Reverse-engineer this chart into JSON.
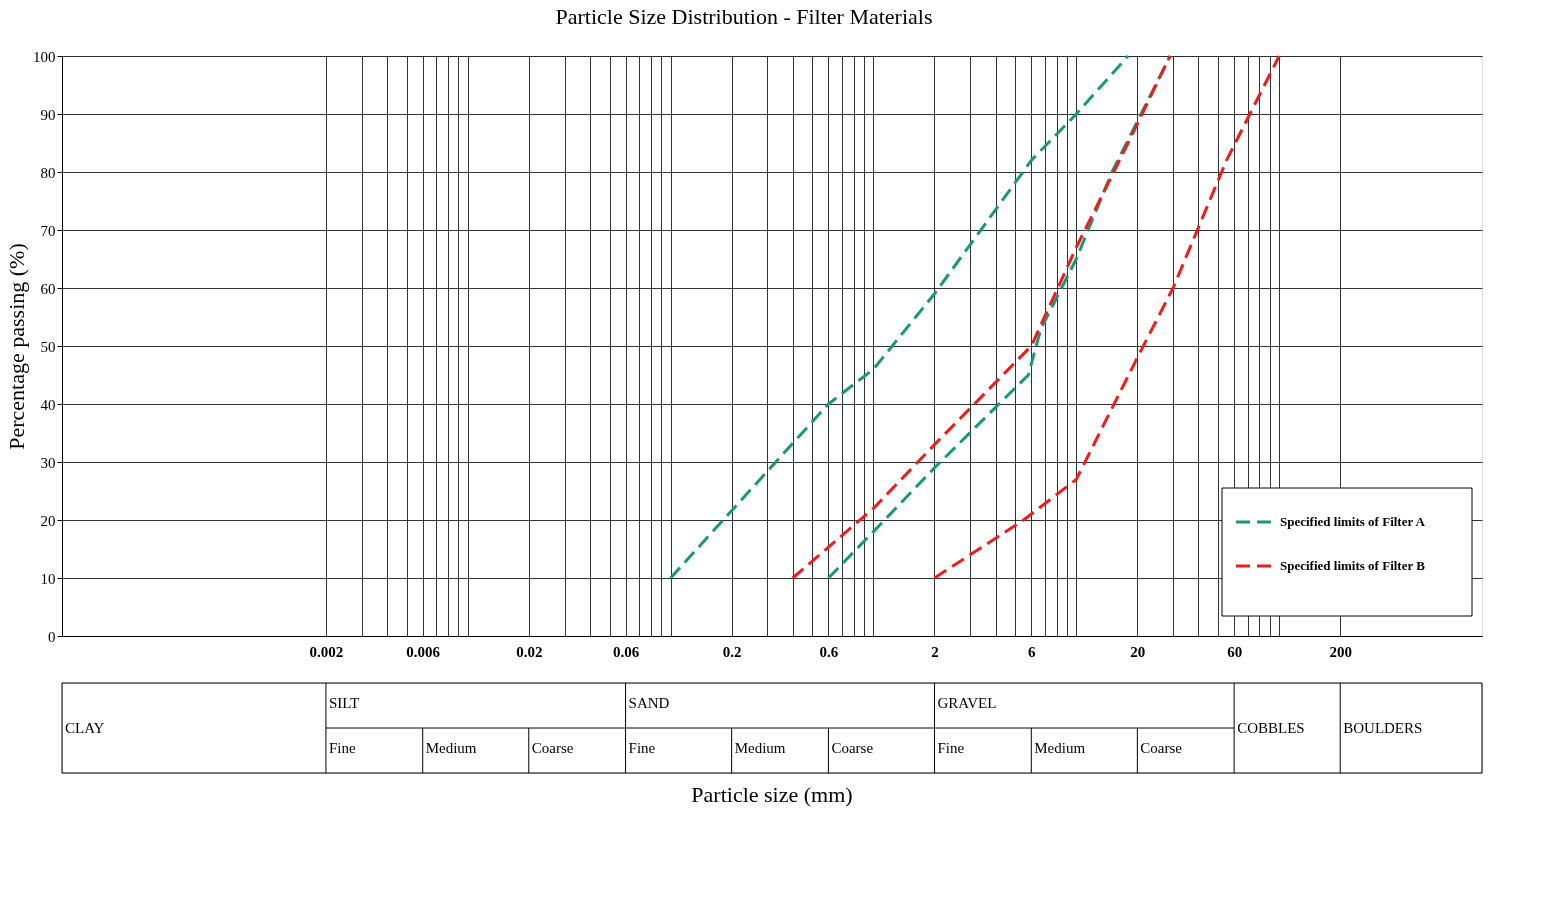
{
  "chart_data": {
    "type": "line",
    "title": "Particle Size Distribution - Filter Materials",
    "ylabel": "Percentage passing (%)",
    "log": "x",
    "xlim": [
      0.0001,
      1000
    ],
    "ylim": [
      0,
      100
    ],
    "xticks": [
      0.002,
      {
        "value": 0.003,
        "label": null
      },
      {
        "value": 0.004,
        "label": null
      },
      {
        "value": 0.005,
        "label": null
      },
      0.006,
      {
        "value": 0.007,
        "label": null
      },
      {
        "value": 0.008,
        "label": null
      },
      {
        "value": 0.009,
        "label": null
      },
      {
        "value": 0.01,
        "label": null
      },
      0.02,
      {
        "value": 0.03,
        "label": null
      },
      {
        "value": 0.04,
        "label": null
      },
      {
        "value": 0.05,
        "label": null
      },
      0.06,
      {
        "value": 0.07,
        "label": null
      },
      {
        "value": 0.08,
        "label": null
      },
      {
        "value": 0.09,
        "label": null
      },
      {
        "value": 0.1,
        "label": null
      },
      0.2,
      {
        "value": 0.3,
        "label": null
      },
      {
        "value": 0.4,
        "label": null
      },
      {
        "value": 0.5,
        "label": null
      },
      0.6,
      {
        "value": 0.7,
        "label": null
      },
      {
        "value": 0.8,
        "label": null
      },
      {
        "value": 0.9,
        "label": null
      },
      {
        "value": 1,
        "label": null
      },
      2,
      {
        "value": 3,
        "label": null
      },
      {
        "value": 4,
        "label": null
      },
      {
        "value": 5,
        "label": null
      },
      6,
      {
        "value": 7,
        "label": null
      },
      {
        "value": 8,
        "label": null
      },
      {
        "value": 9,
        "label": null
      },
      {
        "value": 10,
        "label": null
      },
      20,
      {
        "value": 30,
        "label": null
      },
      {
        "value": 40,
        "label": null
      },
      {
        "value": 50,
        "label": null
      },
      60,
      {
        "value": 70,
        "label": null
      },
      {
        "value": 80,
        "label": null
      },
      {
        "value": 90,
        "label": null
      },
      {
        "value": 100,
        "label": null
      },
      200
    ],
    "yticks": [
      0,
      10,
      20,
      30,
      40,
      50,
      60,
      70,
      80,
      90,
      100
    ],
    "grid": true,
    "legend": "bottom right",
    "line_style": "dashed",
    "marker": "none",
    "series": [
      {
        "name": "Specified limits of Filter A",
        "color": "#1a9a6c",
        "x": [
          0.1,
          0.6,
          1,
          2,
          6,
          10,
          18
        ],
        "values": [
          10,
          40,
          46,
          59,
          82,
          90,
          100
        ]
      },
      {
        "color": "#1a9a6c",
        "x": [
          0.6,
          1,
          2,
          5.8,
          6.7,
          10,
          15,
          29
        ],
        "values": [
          10,
          18,
          29,
          45,
          53,
          65,
          80,
          100
        ]
      },
      {
        "name": "Specified limits of Filter B",
        "color": "#ee1c1c",
        "x": [
          0.4,
          1,
          2,
          6,
          10,
          18,
          29
        ],
        "values": [
          10,
          22,
          33,
          50,
          67,
          85,
          100
        ]
      },
      {
        "color": "#ee1c1c",
        "x": [
          2,
          5.5,
          10,
          20,
          30,
          55,
          100
        ],
        "values": [
          10,
          20,
          27,
          48,
          60,
          82,
          100
        ]
      }
    ],
    "annotations": [
      "CLAY",
      "SILT",
      "Fine",
      "Medium",
      "Coarse",
      "SAND",
      "Fine",
      "Medium",
      "Coarse",
      "GRAVEL",
      "Fine",
      "Medium",
      "Coarse",
      "COBBLES",
      "BOULDERS",
      "Particle size (mm)"
    ]
  }
}
